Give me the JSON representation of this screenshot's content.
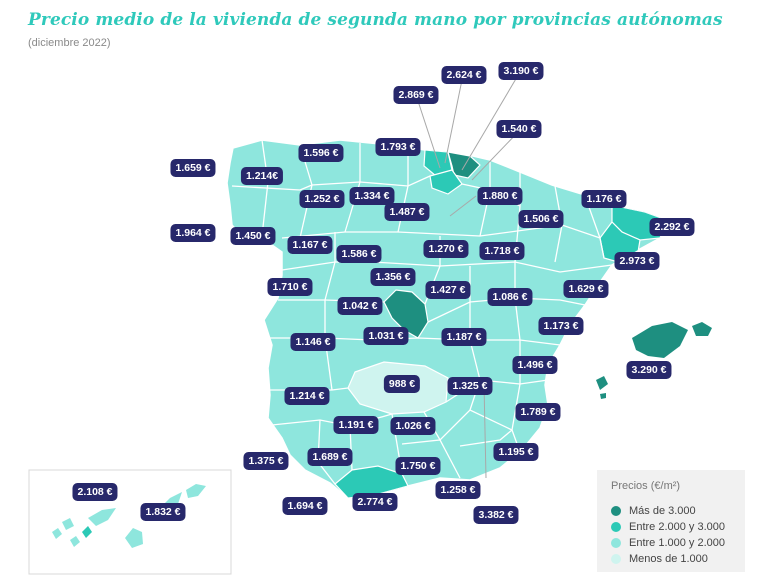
{
  "title": "Precio medio de la vivienda de segunda mano por provincias autónomas",
  "subtitle": "(diciembre 2022)",
  "legend": {
    "title": "Precios (€/m²)",
    "items": [
      {
        "label": "Más de 3.000",
        "color": "#1e8f80"
      },
      {
        "label": "Entre 2.000 y 3.000",
        "color": "#2cc9b6"
      },
      {
        "label": "Entre 1.000 y 2.000",
        "color": "#8ee6dd"
      },
      {
        "label": "Menos de 1.000",
        "color": "#cff4ef"
      }
    ]
  },
  "colors": {
    "above_3000": "#1e8f80",
    "2000_3000": "#2cc9b6",
    "1000_2000": "#8ee6dd",
    "below_1000": "#cff4ef",
    "label_bg": "#27286b",
    "title": "#2fc9bb"
  },
  "price_labels": [
    "2.869 €",
    "2.624 €",
    "3.190 €",
    "1.540 €",
    "1.793 €",
    "1.659 €",
    "1.596 €",
    "1.214€",
    "1.252 €",
    "1.334 €",
    "1.880 €",
    "1.176 €",
    "1.487 €",
    "1.506 €",
    "2.292 €",
    "1.964 €",
    "1.450 €",
    "1.167 €",
    "1.586 €",
    "1.270 €",
    "1.718 €",
    "2.973 €",
    "1.356 €",
    "1.710 €",
    "1.427 €",
    "1.086 €",
    "1.629 €",
    "1.042 €",
    "1.031 €",
    "1.187 €",
    "1.173 €",
    "1.146 €",
    "3.290 €",
    "988 €",
    "1.325 €",
    "1.496 €",
    "1.214 €",
    "1.789 €",
    "1.191 €",
    "1.026 €",
    "1.375 €",
    "1.689 €",
    "1.195 €",
    "1.750 €",
    "2.774 €",
    "1.258 €",
    "1.694 €",
    "3.382 €",
    "2.108 €",
    "1.832 €"
  ]
}
